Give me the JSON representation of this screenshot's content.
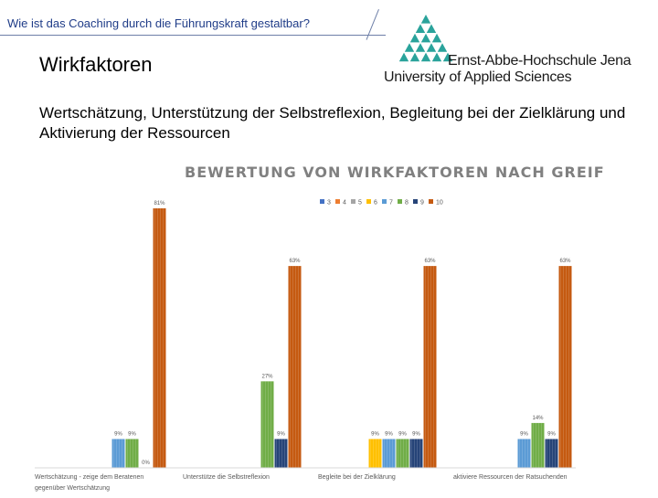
{
  "header": {
    "title": "Wie ist das Coaching durch die Führungskraft gestaltbar?"
  },
  "slide": {
    "heading": "Wirkfaktoren",
    "body": "Wertschätzung, Unterstützung der Selbstreflexion, Begleitung bei der Zielklärung und Aktivierung der Ressourcen"
  },
  "logo": {
    "name": "Ernst-Abbe-Hochschule Jena",
    "subtitle": "University of Applied Sciences",
    "color": "#2aa39b"
  },
  "chart_data": {
    "type": "bar",
    "title": "BEWERTUNG VON WIRKFAKTOREN NACH GREIF",
    "categories": [
      "Wertschätzung - zeige dem Beratenen gegenüber Wertschätzung",
      "Unterstütze die Selbstreflexion",
      "Begleite bei der Zielklärung",
      "aktiviere Ressourcen der Ratsuchenden"
    ],
    "legend_position": "top-right",
    "grid": false,
    "ylim": [
      0,
      81
    ],
    "series": [
      {
        "name": "3",
        "color": "#4472c4",
        "values": [
          null,
          null,
          null,
          null
        ],
        "labels": [
          "",
          "",
          "",
          ""
        ]
      },
      {
        "name": "4",
        "color": "#ed7d31",
        "values": [
          null,
          null,
          null,
          null
        ],
        "labels": [
          "",
          "",
          "",
          ""
        ]
      },
      {
        "name": "5",
        "color": "#a5a5a5",
        "values": [
          null,
          null,
          null,
          null
        ],
        "labels": [
          "",
          "",
          "",
          ""
        ]
      },
      {
        "name": "6",
        "color": "#ffc000",
        "values": [
          null,
          null,
          9,
          null
        ],
        "labels": [
          "",
          "",
          "9%",
          ""
        ]
      },
      {
        "name": "7",
        "color": "#5b9bd5",
        "values": [
          9,
          null,
          9,
          9
        ],
        "labels": [
          "9%",
          "",
          "9%",
          "9%"
        ]
      },
      {
        "name": "8",
        "color": "#70ad47",
        "values": [
          9,
          27,
          9,
          14
        ],
        "labels": [
          "9%",
          "27%",
          "9%",
          "14%"
        ]
      },
      {
        "name": "9",
        "color": "#264478",
        "values": [
          0,
          9,
          9,
          9
        ],
        "labels": [
          "0%",
          "9%",
          "9%",
          "9%"
        ]
      },
      {
        "name": "10",
        "color": "#c55a11",
        "values": [
          81,
          63,
          63,
          63
        ],
        "labels": [
          "81%",
          "63%",
          "63%",
          "63%"
        ]
      }
    ]
  }
}
